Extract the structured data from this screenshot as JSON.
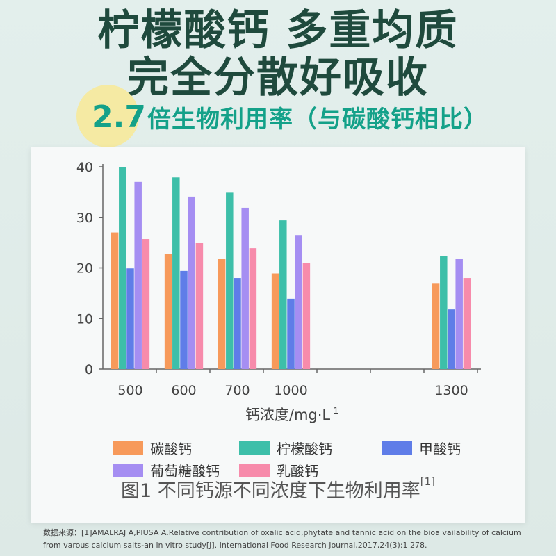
{
  "headline": {
    "line1": "柠檬酸钙 多重均质",
    "line2": "完全分散好吸收"
  },
  "subtitle": {
    "number": "2.7",
    "text": "倍生物利用率（与碳酸钙相比）"
  },
  "chart_data": {
    "type": "bar",
    "xlabel": "钙浓度/mg·L",
    "xlabel_sup": "-1",
    "ylabel": "",
    "ylim": [
      0,
      40
    ],
    "yticks": [
      "0",
      "10",
      "20",
      "30",
      "40"
    ],
    "categories": [
      "500",
      "600",
      "700",
      "1000",
      "1300"
    ],
    "series": [
      {
        "name": "碳酸钙",
        "color": "#f79a5b",
        "values": [
          27,
          22.8,
          21.8,
          18.9,
          17
        ]
      },
      {
        "name": "柠檬酸钙",
        "color": "#3dbfa9",
        "values": [
          40,
          37.9,
          35,
          29.4,
          22.3
        ]
      },
      {
        "name": "甲酸钙",
        "color": "#5f7de8",
        "values": [
          19.9,
          19.4,
          18,
          13.9,
          11.8
        ]
      },
      {
        "name": "葡萄糖酸钙",
        "color": "#a58ef2",
        "values": [
          37,
          34.1,
          31.9,
          26.5,
          21.8
        ]
      },
      {
        "name": "乳酸钙",
        "color": "#f78bab",
        "values": [
          25.7,
          25,
          23.9,
          21,
          18
        ]
      }
    ],
    "legend_position": "bottom",
    "grid": false
  },
  "caption": {
    "text": "图1 不同钙源不同浓度下生物利用率",
    "ref": "[1]"
  },
  "source": "数据来源：[1]AMALRAJ A,PIUSA A.Relative contribution of oxalic acid,phytate and tannic acid on the bioa vailability of calcium from varous calcium salts-an in vitro study[J]. International Food Research Journal,2017,24(3):1 278."
}
